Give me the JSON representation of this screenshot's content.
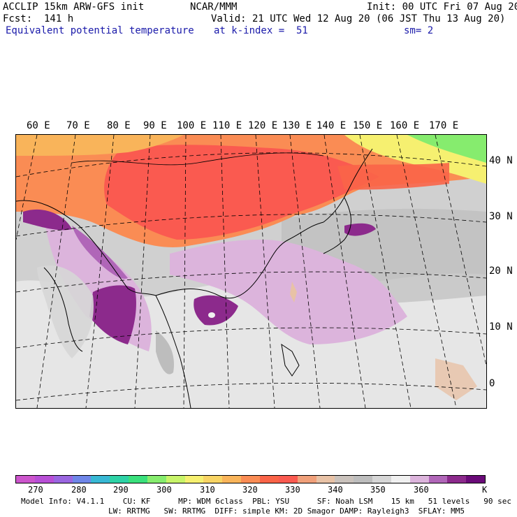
{
  "header": {
    "model": "ACCLIP 15km ARW-GFS init",
    "org": "NCAR/MMM",
    "init": "Init: 00 UTC Fri 07 Aug 20",
    "fcst": "Fcst:  141 h",
    "valid": "Valid: 21 UTC Wed 12 Aug 20 (06 JST Thu 13 Aug 20)",
    "field": "Equivalent potential temperature",
    "level": "at k-index =  51",
    "smooth": "sm= 2"
  },
  "map": {
    "lon_labels": [
      "60 E",
      "70 E",
      "80 E",
      "90 E",
      "100 E",
      "110 E",
      "120 E",
      "130 E",
      "140 E",
      "150 E",
      "160 E",
      "170 E"
    ],
    "lat_labels": [
      "40 N",
      "30 N",
      "20 N",
      "10 N",
      "0"
    ]
  },
  "colorbar": {
    "colors": [
      "#cc55cc",
      "#b84fd6",
      "#9a66e0",
      "#6f86e8",
      "#38b8d4",
      "#2ed2a6",
      "#3ae07c",
      "#86ec6e",
      "#c8f46a",
      "#f6f070",
      "#f8d464",
      "#f9b45a",
      "#fa8c54",
      "#fa6448",
      "#fa5a50",
      "#f0a07a",
      "#e8c2a6",
      "#cac2bc",
      "#bdbdbd",
      "#d6d6d6",
      "#f0f0f0",
      "#dcb4dc",
      "#b066b8",
      "#8c2a8c",
      "#6a0a78"
    ],
    "labels": [
      "270",
      "280",
      "290",
      "300",
      "310",
      "320",
      "330",
      "340",
      "350",
      "360",
      "K"
    ],
    "unit": "K"
  },
  "footer": {
    "line1": "Model Info: V4.1.1    CU: KF      MP: WDM 6class  PBL: YSU      SF: Noah LSM    15 km   51 levels   90 sec",
    "line2": "LW: RRTMG   SW: RRTMG  DIFF: simple KM: 2D Smagor DAMP: Rayleigh3  SFLAY: MM5"
  }
}
